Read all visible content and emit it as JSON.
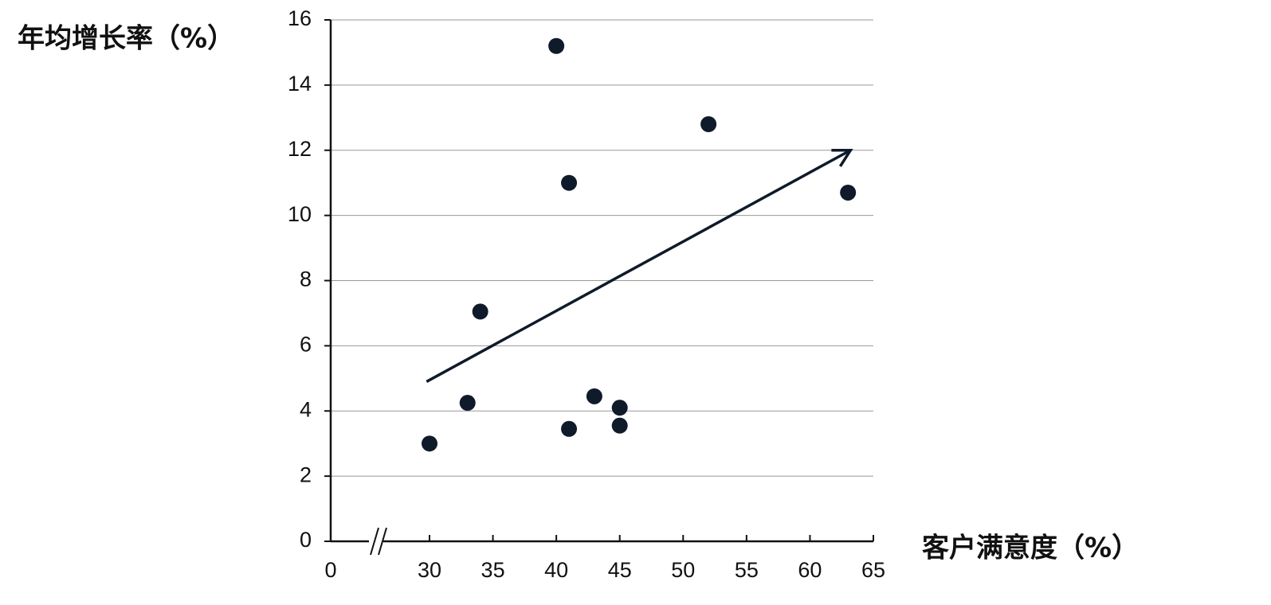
{
  "chart_data": {
    "type": "scatter",
    "y_label": "年均增长率（%）",
    "x_label": "客户满意度（%）",
    "x": [
      30,
      33,
      34,
      40,
      41,
      41,
      43,
      45,
      45,
      52,
      63
    ],
    "values": [
      3.0,
      4.25,
      7.05,
      15.2,
      11.0,
      3.45,
      4.45,
      4.1,
      3.55,
      12.8,
      10.7
    ],
    "color": "#0f1a2a",
    "xlim": [
      0,
      65
    ],
    "x_break": [
      0,
      30
    ],
    "xticks": [
      0,
      30,
      35,
      40,
      45,
      50,
      55,
      60,
      65
    ],
    "ylim": [
      0,
      16
    ],
    "yticks": [
      0,
      2,
      4,
      6,
      8,
      10,
      12,
      14,
      16
    ],
    "grid": true,
    "trend_arrow": {
      "from": [
        29.1,
        4.9
      ],
      "to": [
        63.2,
        12.0
      ]
    }
  }
}
